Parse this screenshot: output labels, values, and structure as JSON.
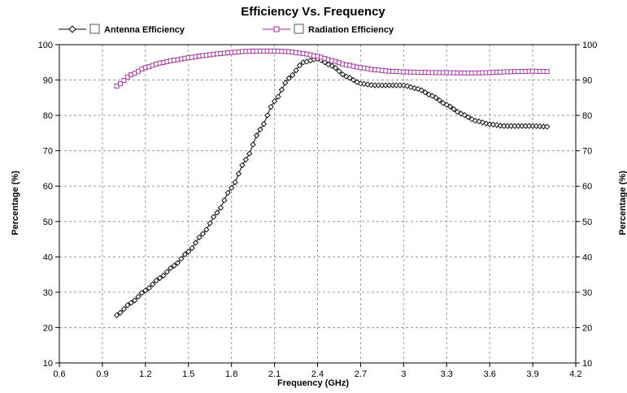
{
  "chart_data": {
    "type": "line",
    "title": "Efficiency Vs. Frequency",
    "xlabel": "Frequency (GHz)",
    "ylabel": "Percentage (%)",
    "ylabel_right": "Percentage (%)",
    "xlim": [
      0.6,
      4.2
    ],
    "ylim": [
      10,
      100
    ],
    "x_ticks": [
      "0.6",
      "0.9",
      "1.2",
      "1.5",
      "1.8",
      "2.1",
      "2.4",
      "2.7",
      "3",
      "3.3",
      "3.6",
      "3.9",
      "4.2"
    ],
    "y_ticks": [
      "10",
      "20",
      "30",
      "40",
      "50",
      "60",
      "70",
      "80",
      "90",
      "100"
    ],
    "grid": true,
    "legend_position": "top",
    "series": [
      {
        "name": "Antenna Efficiency",
        "color": "#000000",
        "marker": "diamond",
        "x": [
          1.0,
          1.1,
          1.2,
          1.3,
          1.4,
          1.5,
          1.6,
          1.7,
          1.8,
          1.9,
          2.0,
          2.1,
          2.2,
          2.3,
          2.4,
          2.5,
          2.6,
          2.7,
          2.8,
          2.9,
          3.0,
          3.1,
          3.2,
          3.3,
          3.4,
          3.5,
          3.6,
          3.7,
          3.8,
          3.9,
          4.0
        ],
        "y": [
          23.5,
          27,
          30.5,
          34,
          37.5,
          41.5,
          46.5,
          52.5,
          59.5,
          67.5,
          76,
          84,
          90.5,
          95,
          96,
          94,
          91,
          89,
          88.5,
          88.5,
          88.5,
          87.5,
          85.5,
          83,
          80.5,
          78.5,
          77.5,
          77,
          77,
          77,
          76.8
        ]
      },
      {
        "name": "Radiation Efficiency",
        "color": "#a0289a",
        "marker": "square",
        "x": [
          1.0,
          1.1,
          1.2,
          1.3,
          1.4,
          1.5,
          1.6,
          1.7,
          1.8,
          1.9,
          2.0,
          2.1,
          2.2,
          2.3,
          2.4,
          2.5,
          2.6,
          2.7,
          2.8,
          2.9,
          3.0,
          3.1,
          3.2,
          3.3,
          3.4,
          3.5,
          3.6,
          3.7,
          3.8,
          3.9,
          4.0
        ],
        "y": [
          88.3,
          91.5,
          93.5,
          94.8,
          95.6,
          96.3,
          96.9,
          97.4,
          97.8,
          98.1,
          98.2,
          98.2,
          98.0,
          97.5,
          96.7,
          95.5,
          94.3,
          93.5,
          92.9,
          92.5,
          92.3,
          92.2,
          92.1,
          92.1,
          92.0,
          92.0,
          92.1,
          92.3,
          92.4,
          92.5,
          92.4
        ]
      }
    ]
  }
}
